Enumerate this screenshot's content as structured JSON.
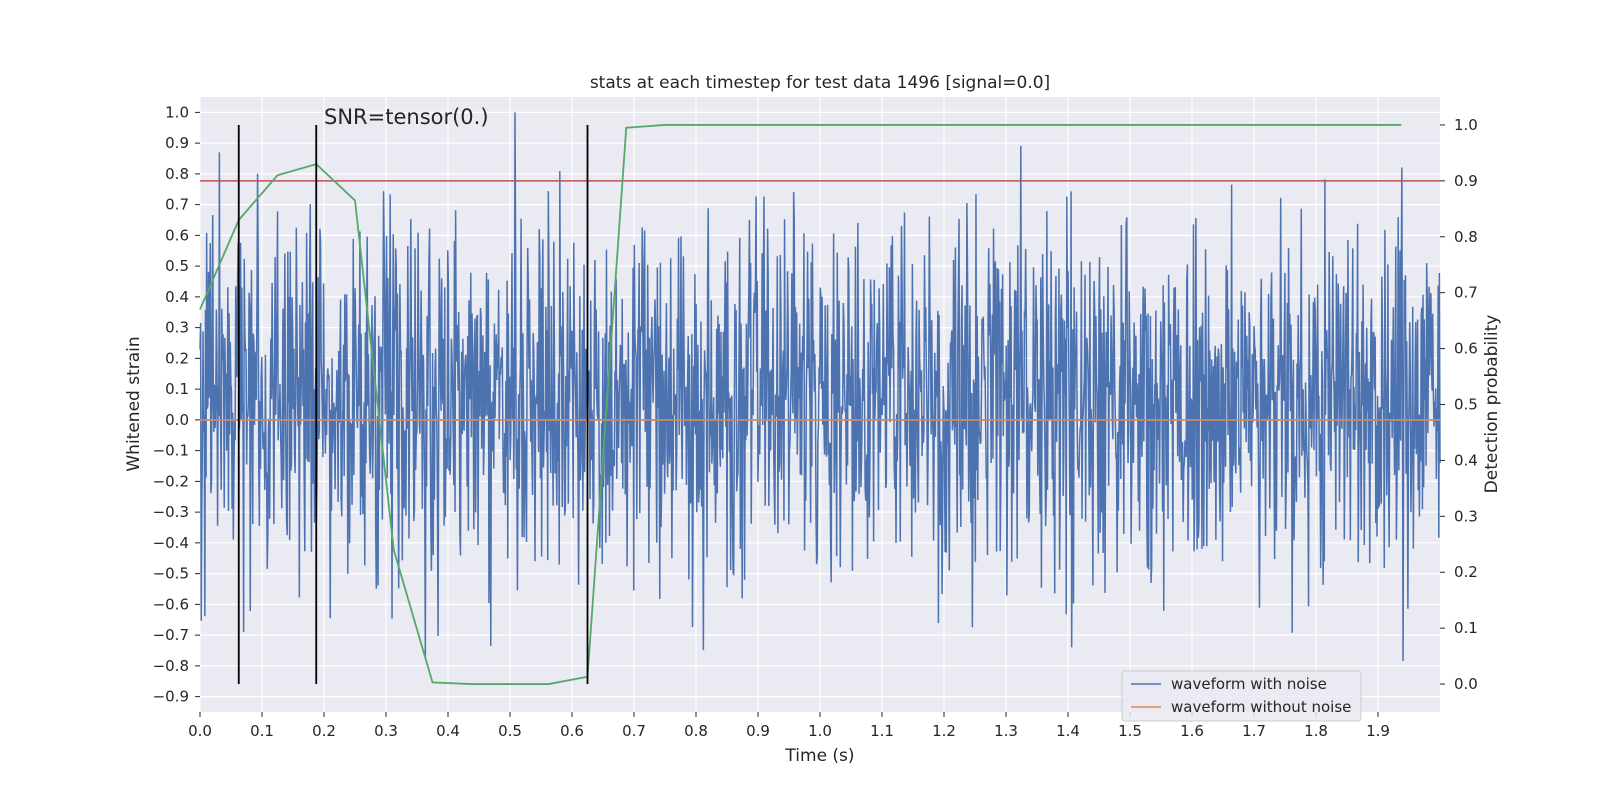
{
  "chart_data": {
    "type": "line",
    "title": "stats at each timestep for test data 1496 [signal=0.0]",
    "xlabel": "Time (s)",
    "ylabel": "Whitened strain",
    "y2label": "Detection probability",
    "xlim": [
      0.0,
      2.0
    ],
    "ylim": [
      -0.95,
      1.05
    ],
    "y2lim": [
      -0.05,
      1.05
    ],
    "x_ticks": [
      0.0,
      0.1,
      0.2,
      0.3,
      0.4,
      0.5,
      0.6,
      0.7,
      0.8,
      0.9,
      1.0,
      1.1,
      1.2,
      1.3,
      1.4,
      1.5,
      1.6,
      1.7,
      1.8,
      1.9
    ],
    "y_ticks": [
      1.0,
      0.9,
      0.8,
      0.7,
      0.6,
      0.5,
      0.4,
      0.3,
      0.2,
      0.1,
      0.0,
      -0.1,
      -0.2,
      -0.3,
      -0.4,
      -0.5,
      -0.6,
      -0.7,
      -0.8,
      -0.9
    ],
    "y2_ticks": [
      1.0,
      0.9,
      0.8,
      0.7,
      0.6,
      0.5,
      0.4,
      0.3,
      0.2,
      0.1,
      0.0
    ],
    "grid": true,
    "legend": {
      "position": "lower-right",
      "entries": [
        "waveform with noise",
        "waveform without noise"
      ]
    },
    "annotation": "SNR=tensor(0.)",
    "series": [
      {
        "name": "waveform with noise",
        "axis": "left",
        "color": "#4c72b0",
        "generated": true,
        "n_points": 2048,
        "x_range": [
          0.0,
          2.0
        ],
        "mean": 0.07,
        "std": 0.28,
        "min": -0.84,
        "max": 1.0
      },
      {
        "name": "waveform without noise",
        "axis": "left",
        "color": "#dd8452",
        "x": [
          0.0,
          2.0
        ],
        "y": [
          0.0,
          0.0
        ]
      },
      {
        "name": "detection probability",
        "axis": "right",
        "color": "#55a868",
        "x": [
          0.0,
          0.0625,
          0.125,
          0.1875,
          0.25,
          0.3125,
          0.375,
          0.4375,
          0.5,
          0.5625,
          0.625,
          0.6875,
          0.75,
          0.8125,
          0.875,
          0.9375,
          1.0,
          1.25,
          1.5,
          1.75,
          1.9375
        ],
        "y": [
          0.67,
          0.83,
          0.91,
          0.93,
          0.865,
          0.24,
          0.003,
          0.0,
          0.0,
          0.0,
          0.013,
          0.995,
          1.0,
          1.0,
          1.0,
          1.0,
          1.0,
          1.0,
          1.0,
          1.0,
          1.0
        ]
      }
    ],
    "threshold": {
      "axis": "right",
      "value": 0.9,
      "color": "#c44e52"
    },
    "vlines": {
      "x": [
        0.0625,
        0.1875,
        0.625
      ],
      "ymin": 0.0,
      "ymax": 1.0,
      "axis": "right",
      "color": "#000000"
    }
  }
}
